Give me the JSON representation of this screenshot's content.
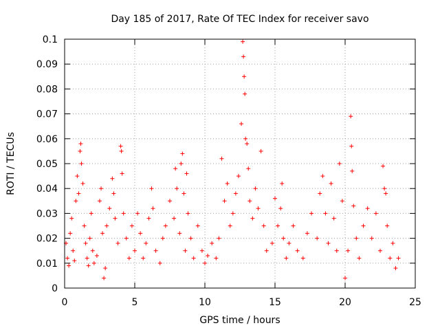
{
  "chart_data": {
    "type": "scatter",
    "title": "Day 185 of 2017, Rate Of TEC Index for receiver savo",
    "xlabel": "GPS time / hours",
    "ylabel": "ROTI / TECUs",
    "xlim": [
      0,
      25
    ],
    "ylim": [
      0,
      0.1
    ],
    "xticks": [
      "0",
      "5",
      "10",
      "15",
      "20",
      "25"
    ],
    "yticks": [
      "0",
      "0.01",
      "0.02",
      "0.03",
      "0.04",
      "0.05",
      "0.06",
      "0.07",
      "0.08",
      "0.09",
      "0.1"
    ],
    "grid": true,
    "marker": "+",
    "color": "#ff0000",
    "series": [
      {
        "points": [
          [
            0.1,
            0.018
          ],
          [
            0.2,
            0.012
          ],
          [
            0.3,
            0.009
          ],
          [
            0.4,
            0.022
          ],
          [
            0.5,
            0.028
          ],
          [
            0.6,
            0.015
          ],
          [
            0.7,
            0.011
          ],
          [
            0.8,
            0.035
          ],
          [
            0.9,
            0.045
          ],
          [
            1.0,
            0.038
          ],
          [
            1.1,
            0.055
          ],
          [
            1.15,
            0.058
          ],
          [
            1.2,
            0.05
          ],
          [
            1.3,
            0.042
          ],
          [
            1.4,
            0.025
          ],
          [
            1.5,
            0.018
          ],
          [
            1.6,
            0.012
          ],
          [
            1.7,
            0.009
          ],
          [
            1.8,
            0.02
          ],
          [
            1.9,
            0.03
          ],
          [
            2.0,
            0.015
          ],
          [
            2.1,
            0.01
          ],
          [
            2.3,
            0.013
          ],
          [
            2.5,
            0.035
          ],
          [
            2.6,
            0.04
          ],
          [
            2.7,
            0.022
          ],
          [
            2.8,
            0.004
          ],
          [
            2.9,
            0.008
          ],
          [
            3.0,
            0.025
          ],
          [
            3.2,
            0.032
          ],
          [
            3.4,
            0.044
          ],
          [
            3.5,
            0.038
          ],
          [
            3.6,
            0.028
          ],
          [
            3.8,
            0.018
          ],
          [
            4.0,
            0.057
          ],
          [
            4.05,
            0.055
          ],
          [
            4.1,
            0.046
          ],
          [
            4.2,
            0.03
          ],
          [
            4.4,
            0.02
          ],
          [
            4.6,
            0.012
          ],
          [
            4.8,
            0.025
          ],
          [
            5.0,
            0.015
          ],
          [
            5.2,
            0.03
          ],
          [
            5.4,
            0.022
          ],
          [
            5.6,
            0.012
          ],
          [
            5.8,
            0.018
          ],
          [
            6.0,
            0.028
          ],
          [
            6.2,
            0.04
          ],
          [
            6.3,
            0.032
          ],
          [
            6.5,
            0.015
          ],
          [
            6.8,
            0.01
          ],
          [
            7.0,
            0.02
          ],
          [
            7.2,
            0.025
          ],
          [
            7.5,
            0.035
          ],
          [
            7.8,
            0.028
          ],
          [
            7.9,
            0.048
          ],
          [
            8.0,
            0.04
          ],
          [
            8.2,
            0.022
          ],
          [
            8.3,
            0.05
          ],
          [
            8.4,
            0.054
          ],
          [
            8.5,
            0.038
          ],
          [
            8.6,
            0.015
          ],
          [
            8.7,
            0.046
          ],
          [
            8.8,
            0.03
          ],
          [
            9.0,
            0.02
          ],
          [
            9.2,
            0.012
          ],
          [
            9.5,
            0.025
          ],
          [
            9.8,
            0.015
          ],
          [
            10.0,
            0.01
          ],
          [
            10.2,
            0.013
          ],
          [
            10.5,
            0.018
          ],
          [
            10.8,
            0.012
          ],
          [
            11.0,
            0.02
          ],
          [
            11.2,
            0.052
          ],
          [
            11.4,
            0.035
          ],
          [
            11.6,
            0.042
          ],
          [
            11.8,
            0.025
          ],
          [
            12.0,
            0.03
          ],
          [
            12.2,
            0.038
          ],
          [
            12.4,
            0.045
          ],
          [
            12.6,
            0.066
          ],
          [
            12.7,
            0.099
          ],
          [
            12.75,
            0.093
          ],
          [
            12.8,
            0.085
          ],
          [
            12.85,
            0.078
          ],
          [
            12.9,
            0.06
          ],
          [
            13.0,
            0.058
          ],
          [
            13.1,
            0.048
          ],
          [
            13.2,
            0.035
          ],
          [
            13.4,
            0.028
          ],
          [
            13.6,
            0.04
          ],
          [
            13.8,
            0.032
          ],
          [
            14.0,
            0.055
          ],
          [
            14.2,
            0.025
          ],
          [
            14.4,
            0.015
          ],
          [
            14.8,
            0.018
          ],
          [
            15.0,
            0.036
          ],
          [
            15.2,
            0.025
          ],
          [
            15.4,
            0.032
          ],
          [
            15.5,
            0.042
          ],
          [
            15.6,
            0.02
          ],
          [
            15.8,
            0.012
          ],
          [
            16.0,
            0.018
          ],
          [
            16.3,
            0.025
          ],
          [
            16.6,
            0.015
          ],
          [
            17.0,
            0.012
          ],
          [
            17.3,
            0.022
          ],
          [
            17.6,
            0.03
          ],
          [
            18.0,
            0.02
          ],
          [
            18.2,
            0.038
          ],
          [
            18.4,
            0.045
          ],
          [
            18.6,
            0.03
          ],
          [
            18.8,
            0.018
          ],
          [
            19.0,
            0.042
          ],
          [
            19.2,
            0.028
          ],
          [
            19.4,
            0.015
          ],
          [
            19.6,
            0.05
          ],
          [
            19.8,
            0.035
          ],
          [
            20.0,
            0.004
          ],
          [
            20.2,
            0.015
          ],
          [
            20.4,
            0.069
          ],
          [
            20.45,
            0.057
          ],
          [
            20.5,
            0.047
          ],
          [
            20.6,
            0.033
          ],
          [
            20.8,
            0.02
          ],
          [
            21.0,
            0.012
          ],
          [
            21.3,
            0.025
          ],
          [
            21.6,
            0.032
          ],
          [
            21.9,
            0.02
          ],
          [
            22.2,
            0.03
          ],
          [
            22.5,
            0.015
          ],
          [
            22.7,
            0.049
          ],
          [
            22.8,
            0.04
          ],
          [
            22.9,
            0.038
          ],
          [
            23.0,
            0.025
          ],
          [
            23.2,
            0.012
          ],
          [
            23.4,
            0.018
          ],
          [
            23.6,
            0.008
          ],
          [
            23.8,
            0.012
          ]
        ]
      }
    ]
  }
}
